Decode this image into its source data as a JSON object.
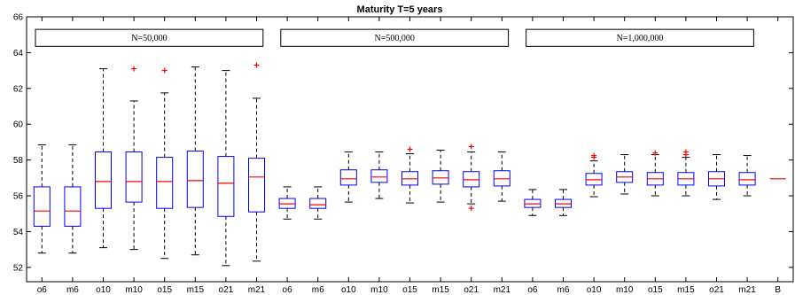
{
  "chart_data": {
    "type": "box",
    "title": "Maturity T=5 years",
    "xlabel": "",
    "ylabel": "",
    "ylim": [
      51.2,
      66
    ],
    "yticks": [
      52,
      54,
      56,
      58,
      60,
      62,
      64,
      66
    ],
    "grid": false,
    "colors": {
      "box": "#0000ff",
      "median": "#ff0000",
      "whisker": "#000000",
      "outlier": "#ff0000",
      "axis": "#000000"
    },
    "groups": [
      {
        "label": "N=50,000",
        "first": 0,
        "last": 7
      },
      {
        "label": "N=500,000",
        "first": 8,
        "last": 15
      },
      {
        "label": "N=1,000,000",
        "first": 16,
        "last": 23
      }
    ],
    "categories": [
      "o6",
      "m6",
      "o10",
      "m10",
      "o15",
      "m15",
      "o21",
      "m21",
      "o6",
      "m6",
      "o10",
      "m10",
      "o15",
      "m15",
      "o21",
      "m21",
      "o6",
      "m6",
      "o10",
      "m10",
      "o15",
      "m15",
      "o21",
      "m21",
      "B"
    ],
    "boxes": [
      {
        "min": 52.8,
        "q1": 54.3,
        "median": 55.15,
        "q3": 56.5,
        "max": 58.85,
        "outliers": []
      },
      {
        "min": 52.8,
        "q1": 54.3,
        "median": 55.15,
        "q3": 56.5,
        "max": 58.85,
        "outliers": []
      },
      {
        "min": 53.1,
        "q1": 55.3,
        "median": 56.8,
        "q3": 58.45,
        "max": 63.1,
        "outliers": []
      },
      {
        "min": 53.0,
        "q1": 55.65,
        "median": 56.8,
        "q3": 58.45,
        "max": 61.3,
        "outliers": [
          63.1
        ]
      },
      {
        "min": 52.5,
        "q1": 55.3,
        "median": 56.8,
        "q3": 58.15,
        "max": 61.75,
        "outliers": [
          63.0
        ]
      },
      {
        "min": 52.7,
        "q1": 55.35,
        "median": 56.85,
        "q3": 58.5,
        "max": 63.2,
        "outliers": []
      },
      {
        "min": 52.1,
        "q1": 54.85,
        "median": 56.7,
        "q3": 58.2,
        "max": 63.0,
        "outliers": []
      },
      {
        "min": 52.35,
        "q1": 55.1,
        "median": 57.05,
        "q3": 58.1,
        "max": 61.45,
        "outliers": [
          63.3
        ]
      },
      {
        "min": 54.7,
        "q1": 55.3,
        "median": 55.55,
        "q3": 55.85,
        "max": 56.5,
        "outliers": []
      },
      {
        "min": 54.7,
        "q1": 55.3,
        "median": 55.5,
        "q3": 55.85,
        "max": 56.5,
        "outliers": []
      },
      {
        "min": 55.65,
        "q1": 56.6,
        "median": 56.95,
        "q3": 57.45,
        "max": 58.45,
        "outliers": []
      },
      {
        "min": 55.85,
        "q1": 56.75,
        "median": 57.05,
        "q3": 57.45,
        "max": 58.45,
        "outliers": []
      },
      {
        "min": 55.6,
        "q1": 56.6,
        "median": 56.95,
        "q3": 57.35,
        "max": 58.35,
        "outliers": [
          58.6
        ]
      },
      {
        "min": 55.65,
        "q1": 56.65,
        "median": 57.0,
        "q3": 57.4,
        "max": 58.55,
        "outliers": []
      },
      {
        "min": 55.55,
        "q1": 56.5,
        "median": 56.9,
        "q3": 57.35,
        "max": 58.45,
        "outliers": [
          58.75,
          55.3
        ]
      },
      {
        "min": 55.7,
        "q1": 56.55,
        "median": 56.95,
        "q3": 57.4,
        "max": 58.45,
        "outliers": []
      },
      {
        "min": 54.9,
        "q1": 55.35,
        "median": 55.55,
        "q3": 55.8,
        "max": 56.35,
        "outliers": []
      },
      {
        "min": 54.9,
        "q1": 55.35,
        "median": 55.55,
        "q3": 55.8,
        "max": 56.35,
        "outliers": []
      },
      {
        "min": 55.95,
        "q1": 56.6,
        "median": 56.9,
        "q3": 57.25,
        "max": 57.95,
        "outliers": [
          58.15,
          58.25
        ]
      },
      {
        "min": 56.1,
        "q1": 56.75,
        "median": 57.05,
        "q3": 57.35,
        "max": 58.3,
        "outliers": []
      },
      {
        "min": 56.0,
        "q1": 56.6,
        "median": 56.95,
        "q3": 57.3,
        "max": 58.3,
        "outliers": [
          58.4
        ]
      },
      {
        "min": 56.0,
        "q1": 56.6,
        "median": 56.95,
        "q3": 57.3,
        "max": 58.15,
        "outliers": [
          58.45,
          58.3
        ]
      },
      {
        "min": 55.8,
        "q1": 56.55,
        "median": 56.95,
        "q3": 57.35,
        "max": 58.3,
        "outliers": []
      },
      {
        "min": 56.0,
        "q1": 56.6,
        "median": 56.9,
        "q3": 57.3,
        "max": 58.25,
        "outliers": []
      },
      {
        "min": 56.95,
        "q1": 56.95,
        "median": 56.95,
        "q3": 56.95,
        "max": 56.95,
        "outliers": []
      }
    ]
  }
}
